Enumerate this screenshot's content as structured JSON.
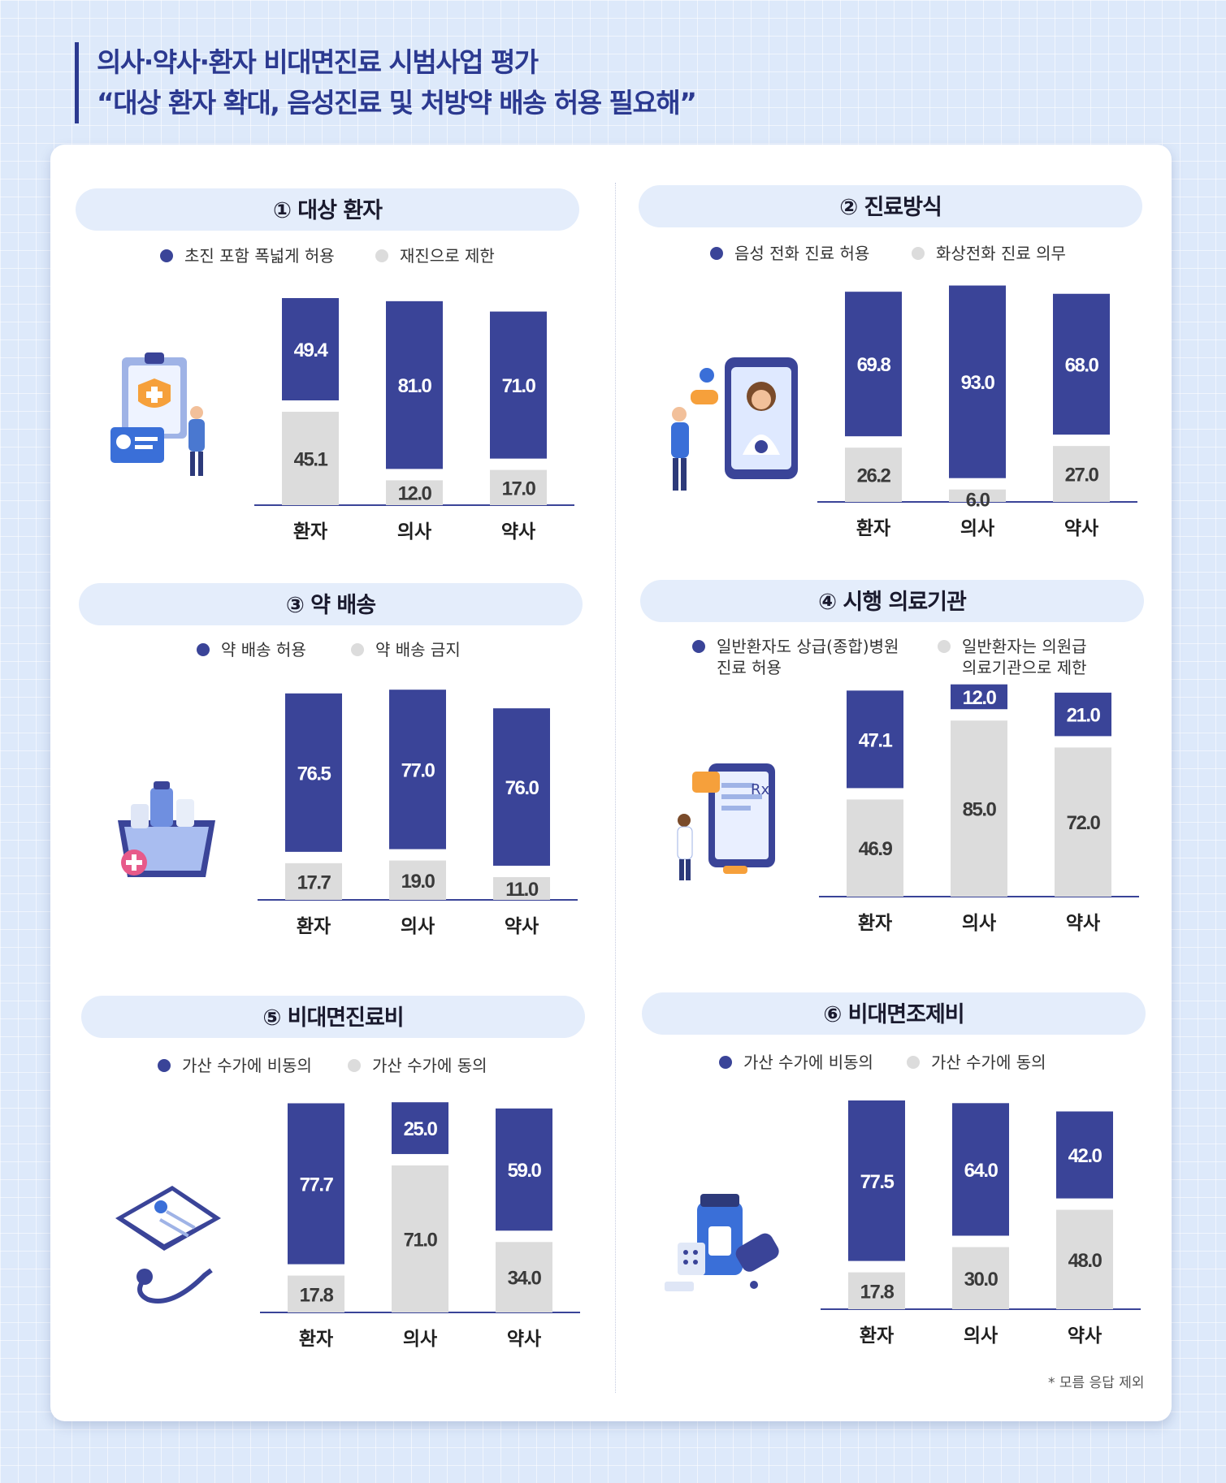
{
  "header": {
    "line1": "의사·약사·환자 비대면진료 시범사업 평가",
    "line2": "“대상 환자 확대, 음성진료 및 처방약 배송 허용 필요해”"
  },
  "footnote": "* 모름 응답 제외",
  "colors": {
    "primary": "#3a4498",
    "secondary": "#dcdcdc",
    "accent": "#2b3990"
  },
  "chart_data": [
    {
      "type": "bar",
      "title": "① 대상 환자",
      "categories": [
        "환자",
        "의사",
        "약사"
      ],
      "series": [
        {
          "name": "초진 포함 폭넓게 허용",
          "values": [
            49.4,
            81.0,
            71.0
          ]
        },
        {
          "name": "재진으로 제한",
          "values": [
            45.1,
            12.0,
            17.0
          ]
        }
      ]
    },
    {
      "type": "bar",
      "title": "② 진료방식",
      "categories": [
        "환자",
        "의사",
        "약사"
      ],
      "series": [
        {
          "name": "음성 전화 진료 허용",
          "values": [
            69.8,
            93.0,
            68.0
          ]
        },
        {
          "name": "화상전화 진료 의무",
          "values": [
            26.2,
            6.0,
            27.0
          ]
        }
      ]
    },
    {
      "type": "bar",
      "title": "③ 약 배송",
      "categories": [
        "환자",
        "의사",
        "약사"
      ],
      "series": [
        {
          "name": "약 배송 허용",
          "values": [
            76.5,
            77.0,
            76.0
          ]
        },
        {
          "name": "약 배송 금지",
          "values": [
            17.7,
            19.0,
            11.0
          ]
        }
      ]
    },
    {
      "type": "bar",
      "title": "④ 시행 의료기관",
      "categories": [
        "환자",
        "의사",
        "약사"
      ],
      "series": [
        {
          "name": "일반환자도 상급(종합)병원 진료 허용",
          "values": [
            47.1,
            12.0,
            21.0
          ]
        },
        {
          "name": "일반환자는 의원급 의료기관으로 제한",
          "values": [
            46.9,
            85.0,
            72.0
          ]
        }
      ]
    },
    {
      "type": "bar",
      "title": "⑤ 비대면진료비",
      "categories": [
        "환자",
        "의사",
        "약사"
      ],
      "series": [
        {
          "name": "가산 수가에 비동의",
          "values": [
            77.7,
            25.0,
            59.0
          ]
        },
        {
          "name": "가산 수가에 동의",
          "values": [
            17.8,
            71.0,
            34.0
          ]
        }
      ]
    },
    {
      "type": "bar",
      "title": "⑥ 비대면조제비",
      "categories": [
        "환자",
        "의사",
        "약사"
      ],
      "series": [
        {
          "name": "가산 수가에 비동의",
          "values": [
            77.5,
            64.0,
            42.0
          ]
        },
        {
          "name": "가산 수가에 동의",
          "values": [
            17.8,
            30.0,
            48.0
          ]
        }
      ]
    }
  ]
}
